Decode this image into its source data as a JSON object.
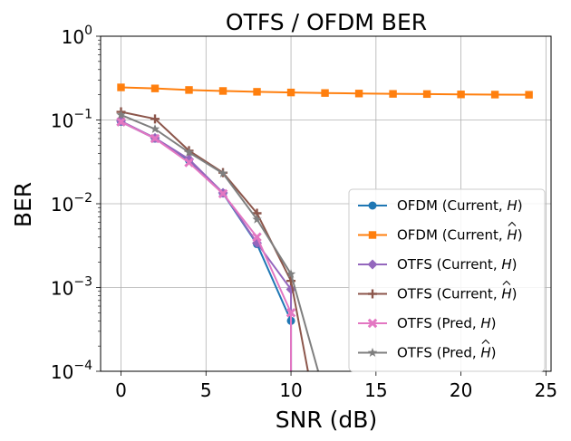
{
  "chart_data": {
    "type": "line",
    "title": "OTFS / OFDM BER",
    "xlabel": "SNR (dB)",
    "ylabel": "BER",
    "yscale": "log",
    "xlim": [
      -1.2,
      25.3
    ],
    "ylim": [
      0.0001,
      1
    ],
    "grid": true,
    "legend_location": "lower-right",
    "x_ticks": [
      0,
      5,
      10,
      15,
      20,
      25
    ],
    "x_tick_labels": [
      "0",
      "5",
      "10",
      "15",
      "20",
      "25"
    ],
    "y_ticks": [
      {
        "value": 1,
        "base": "10",
        "exp": "0"
      },
      {
        "value": 0.1,
        "base": "10",
        "exp": "−1"
      },
      {
        "value": 0.01,
        "base": "10",
        "exp": "−2"
      },
      {
        "value": 0.001,
        "base": "10",
        "exp": "−3"
      },
      {
        "value": 0.0001,
        "base": "10",
        "exp": "−4"
      }
    ],
    "series": [
      {
        "name": "OFDM (Current, H)",
        "legend_main": "OFDM (Current, ",
        "legend_sym": "H",
        "legend_hat": false,
        "color": "#1f77b4",
        "marker": "circle",
        "x": [
          0,
          2,
          4,
          6,
          8,
          10,
          10
        ],
        "y": [
          0.095,
          0.06,
          0.033,
          0.0133,
          0.0033,
          0.0004,
          0.0001
        ]
      },
      {
        "name": "OFDM (Current, Ĥ)",
        "legend_main": "OFDM (Current, ",
        "legend_sym": "H",
        "legend_hat": true,
        "color": "#ff7f0e",
        "marker": "square",
        "x": [
          0,
          2,
          4,
          6,
          8,
          10,
          12,
          14,
          16,
          18,
          20,
          22,
          24
        ],
        "y": [
          0.245,
          0.238,
          0.228,
          0.222,
          0.217,
          0.213,
          0.21,
          0.207,
          0.205,
          0.204,
          0.202,
          0.201,
          0.2
        ]
      },
      {
        "name": "OTFS (Current, H)",
        "legend_main": "OTFS (Current, ",
        "legend_sym": "H",
        "legend_hat": false,
        "color": "#9467bd",
        "marker": "diamond",
        "x": [
          0,
          2,
          4,
          6,
          8,
          10,
          10
        ],
        "y": [
          0.097,
          0.061,
          0.034,
          0.0135,
          0.0034,
          0.00095,
          0.0001
        ]
      },
      {
        "name": "OTFS (Current, Ĥ)",
        "legend_main": "OTFS (Current, ",
        "legend_sym": "H",
        "legend_hat": true,
        "color": "#8c564b",
        "marker": "plus",
        "x": [
          0,
          2,
          4,
          6,
          8,
          10,
          11
        ],
        "y": [
          0.125,
          0.103,
          0.043,
          0.0235,
          0.0077,
          0.0012,
          0.0001
        ]
      },
      {
        "name": "OTFS (Pred, H)",
        "legend_main": "OTFS (Pred, ",
        "legend_sym": "H",
        "legend_hat": false,
        "color": "#e377c2",
        "marker": "x",
        "x": [
          0,
          2,
          4,
          6,
          8,
          10,
          10
        ],
        "y": [
          0.095,
          0.06,
          0.031,
          0.0132,
          0.004,
          0.0005,
          0.0001
        ]
      },
      {
        "name": "OTFS (Pred, Ĥ)",
        "legend_main": "OTFS (Pred, ",
        "legend_sym": "H",
        "legend_hat": true,
        "color": "#7f7f7f",
        "marker": "star",
        "x": [
          0,
          2,
          4,
          6,
          8,
          10,
          11.6
        ],
        "y": [
          0.115,
          0.078,
          0.041,
          0.023,
          0.0065,
          0.00145,
          0.0001
        ]
      }
    ]
  }
}
